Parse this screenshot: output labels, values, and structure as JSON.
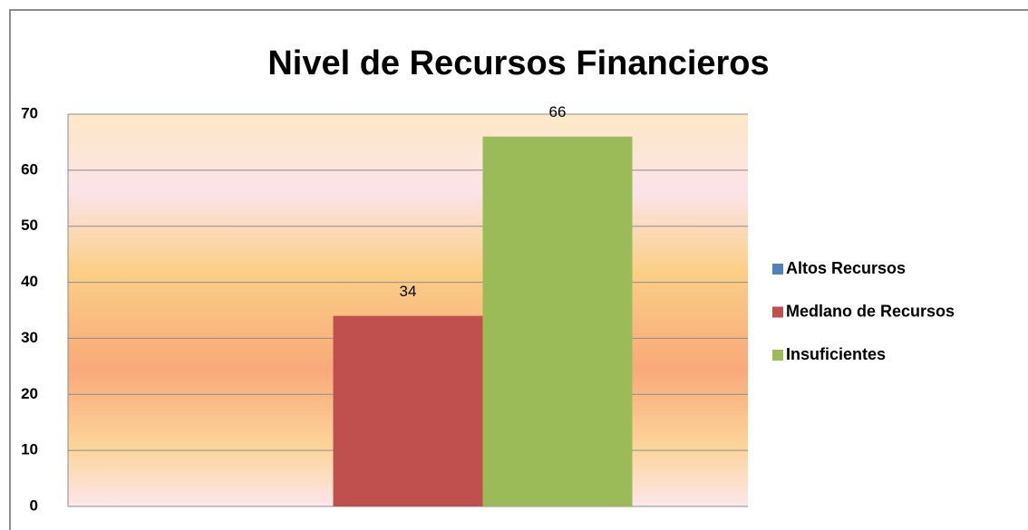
{
  "chart_data": {
    "type": "bar",
    "title": "Nivel de Recursos Financieros",
    "categories": [
      null
    ],
    "series": [
      {
        "name": "Altos Recursos",
        "color": "#4f81bd",
        "values": [
          0
        ]
      },
      {
        "name": "Medlano de Recursos",
        "color": "#c0504d",
        "values": [
          34
        ]
      },
      {
        "name": "Insuficientes",
        "color": "#9bbb59",
        "values": [
          66
        ]
      }
    ],
    "ylim": [
      0,
      70
    ],
    "yticks": [
      0,
      10,
      20,
      30,
      40,
      50,
      60,
      70
    ],
    "grid": true,
    "legend": "right"
  }
}
